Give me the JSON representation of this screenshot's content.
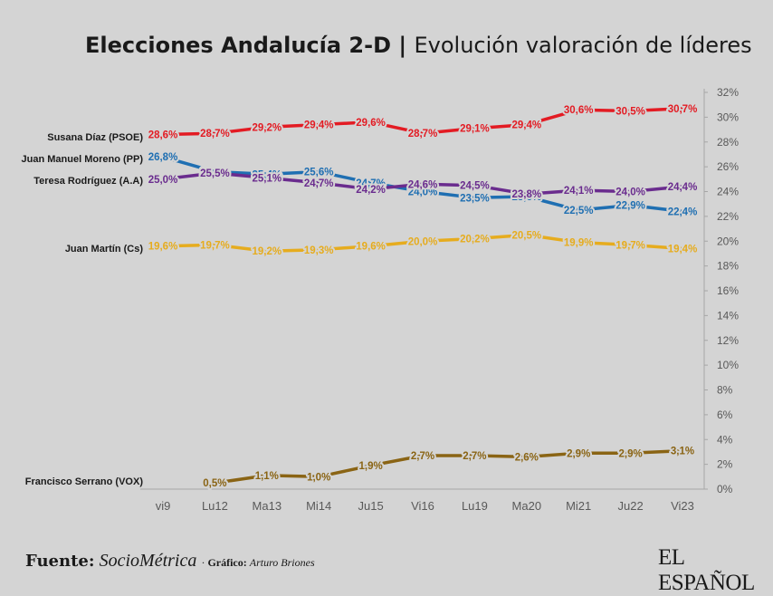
{
  "chart_data": {
    "type": "line",
    "title_bold": "Elecciones Andalucía 2-D",
    "title_separator": " | ",
    "title_rest": "Evolución valoración de líderes",
    "categories": [
      "vi9",
      "Lu12",
      "Ma13",
      "Mi14",
      "Ju15",
      "Vi16",
      "Lu19",
      "Ma20",
      "Mi21",
      "Ju22",
      "Vi23"
    ],
    "ylim": [
      0,
      32
    ],
    "yticks": [
      "0%",
      "2%",
      "4%",
      "6%",
      "8%",
      "10%",
      "12%",
      "14%",
      "16%",
      "18%",
      "20%",
      "22%",
      "24%",
      "26%",
      "28%",
      "30%",
      "32%"
    ],
    "series": [
      {
        "name": "Susana Díaz (PSOE)",
        "color": "#e31b23",
        "values": [
          28.6,
          28.7,
          29.2,
          29.4,
          29.6,
          28.7,
          29.1,
          29.4,
          30.6,
          30.5,
          30.7
        ],
        "labels": [
          "28,6%",
          "28,7%",
          "29,2%",
          "29,4%",
          "29,6%",
          "28,7%",
          "29,1%",
          "29,4%",
          "30,6%",
          "30,5%",
          "30,7%"
        ]
      },
      {
        "name": "Juan Manuel Moreno (PP)",
        "color": "#1f6fb2",
        "values": [
          26.8,
          25.6,
          25.4,
          25.6,
          24.7,
          24.0,
          23.5,
          23.6,
          22.5,
          22.9,
          22.4
        ],
        "labels": [
          "26,8%",
          "25,6%",
          "25,4%",
          "25,6%",
          "24,7%",
          "24,0%",
          "23,5%",
          "23,6%",
          "22,5%",
          "22,9%",
          "22,4%"
        ]
      },
      {
        "name": "Teresa Rodríguez (A.A)",
        "color": "#6a2c8e",
        "values": [
          25.0,
          25.5,
          25.1,
          24.7,
          24.2,
          24.6,
          24.5,
          23.8,
          24.1,
          24.0,
          24.4
        ],
        "labels": [
          "25,0%",
          "25,5%",
          "25,1%",
          "24,7%",
          "24,2%",
          "24,6%",
          "24,5%",
          "23,8%",
          "24,1%",
          "24,0%",
          "24,4%"
        ]
      },
      {
        "name": "Juan Martín (Cs)",
        "color": "#e6ac1e",
        "values": [
          19.6,
          19.7,
          19.2,
          19.3,
          19.6,
          20.0,
          20.2,
          20.5,
          19.9,
          19.7,
          19.4
        ],
        "labels": [
          "19,6%",
          "19,7%",
          "19,2%",
          "19,3%",
          "19,6%",
          "20,0%",
          "20,2%",
          "20,5%",
          "19,9%",
          "19,7%",
          "19,4%"
        ]
      },
      {
        "name": "Francisco Serrano (VOX)",
        "color": "#8a6414",
        "values": [
          null,
          0.5,
          1.1,
          1.0,
          1.9,
          2.7,
          2.7,
          2.6,
          2.9,
          2.9,
          3.1
        ],
        "labels": [
          null,
          "0,5%",
          "1,1%",
          "1,0%",
          "1,9%",
          "2,7%",
          "2,7%",
          "2,6%",
          "2,9%",
          "2,9%",
          "3,1%"
        ]
      }
    ]
  },
  "footer": {
    "source_label": "Fuente:",
    "source_name": "SocioMétrica",
    "graphic_prefix": "· ",
    "graphic_label": "Gráfico:",
    "graphic_author": "Arturo Briones"
  },
  "logo": "EL ESPAÑOL"
}
